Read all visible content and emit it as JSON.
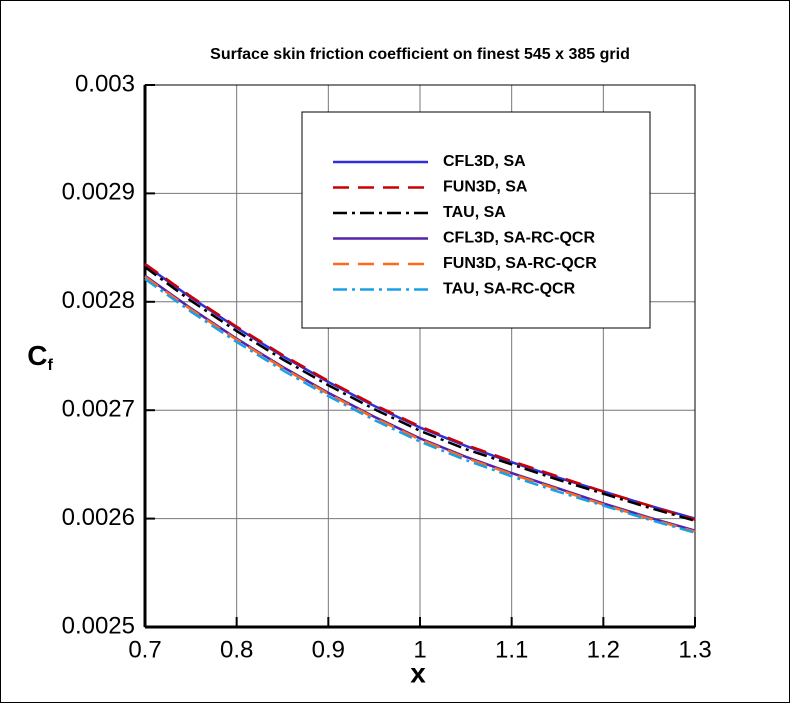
{
  "chart_data": {
    "type": "line",
    "title": "Surface skin friction coefficient on finest 545 x 385 grid",
    "x_label": "x",
    "y_label": {
      "text": "C",
      "subscript": "f"
    },
    "xlim": [
      0.7,
      1.3
    ],
    "ylim": [
      0.0025,
      0.003
    ],
    "xticks": [
      0.7,
      0.8,
      0.9,
      1,
      1.1,
      1.2,
      1.3
    ],
    "yticks": [
      0.0025,
      0.0026,
      0.0027,
      0.0028,
      0.0029,
      0.003
    ],
    "grid": true,
    "legend": "upper right",
    "x": [
      0.7,
      0.75,
      0.8,
      0.85,
      0.9,
      0.95,
      1,
      1.05,
      1.1,
      1.15,
      1.2,
      1.25,
      1.3
    ],
    "series": [
      {
        "name": "CFL3D, SA",
        "color": "#3030d8",
        "dash": "solid",
        "values": [
          0.002834,
          0.002804,
          0.002776,
          0.00275,
          0.002726,
          0.002704,
          0.002684,
          0.002667,
          0.002652,
          0.002638,
          0.002625,
          0.002612,
          0.0026
        ]
      },
      {
        "name": "FUN3D, SA",
        "color": "#cc0000",
        "dash": "dashed",
        "values": [
          0.002835,
          0.002805,
          0.002777,
          0.002751,
          0.002727,
          0.002705,
          0.002685,
          0.002668,
          0.002653,
          0.002639,
          0.002625,
          0.002612,
          0.002599
        ]
      },
      {
        "name": "TAU, SA",
        "color": "#000000",
        "dash": "dashdot",
        "values": [
          0.002832,
          0.002801,
          0.002773,
          0.002747,
          0.002723,
          0.002701,
          0.002681,
          0.002664,
          0.00265,
          0.002636,
          0.002623,
          0.00261,
          0.002598
        ]
      },
      {
        "name": "CFL3D, SA-RC-QCR",
        "color": "#5522aa",
        "dash": "solid",
        "values": [
          0.002824,
          0.002794,
          0.002766,
          0.00274,
          0.002716,
          0.002694,
          0.002674,
          0.002657,
          0.002642,
          0.002628,
          0.002614,
          0.002601,
          0.002589
        ]
      },
      {
        "name": "FUN3D, SA-RC-QCR",
        "color": "#ff6a1a",
        "dash": "dashed",
        "values": [
          0.002823,
          0.002793,
          0.002765,
          0.002739,
          0.002715,
          0.002693,
          0.002673,
          0.002656,
          0.002641,
          0.002627,
          0.002613,
          0.0026,
          0.002588
        ]
      },
      {
        "name": "TAU, SA-RC-QCR",
        "color": "#1aa0e6",
        "dash": "dashdot",
        "values": [
          0.002821,
          0.002791,
          0.002763,
          0.002737,
          0.002713,
          0.002691,
          0.002671,
          0.002654,
          0.002639,
          0.002625,
          0.002612,
          0.002599,
          0.002587
        ]
      }
    ]
  }
}
